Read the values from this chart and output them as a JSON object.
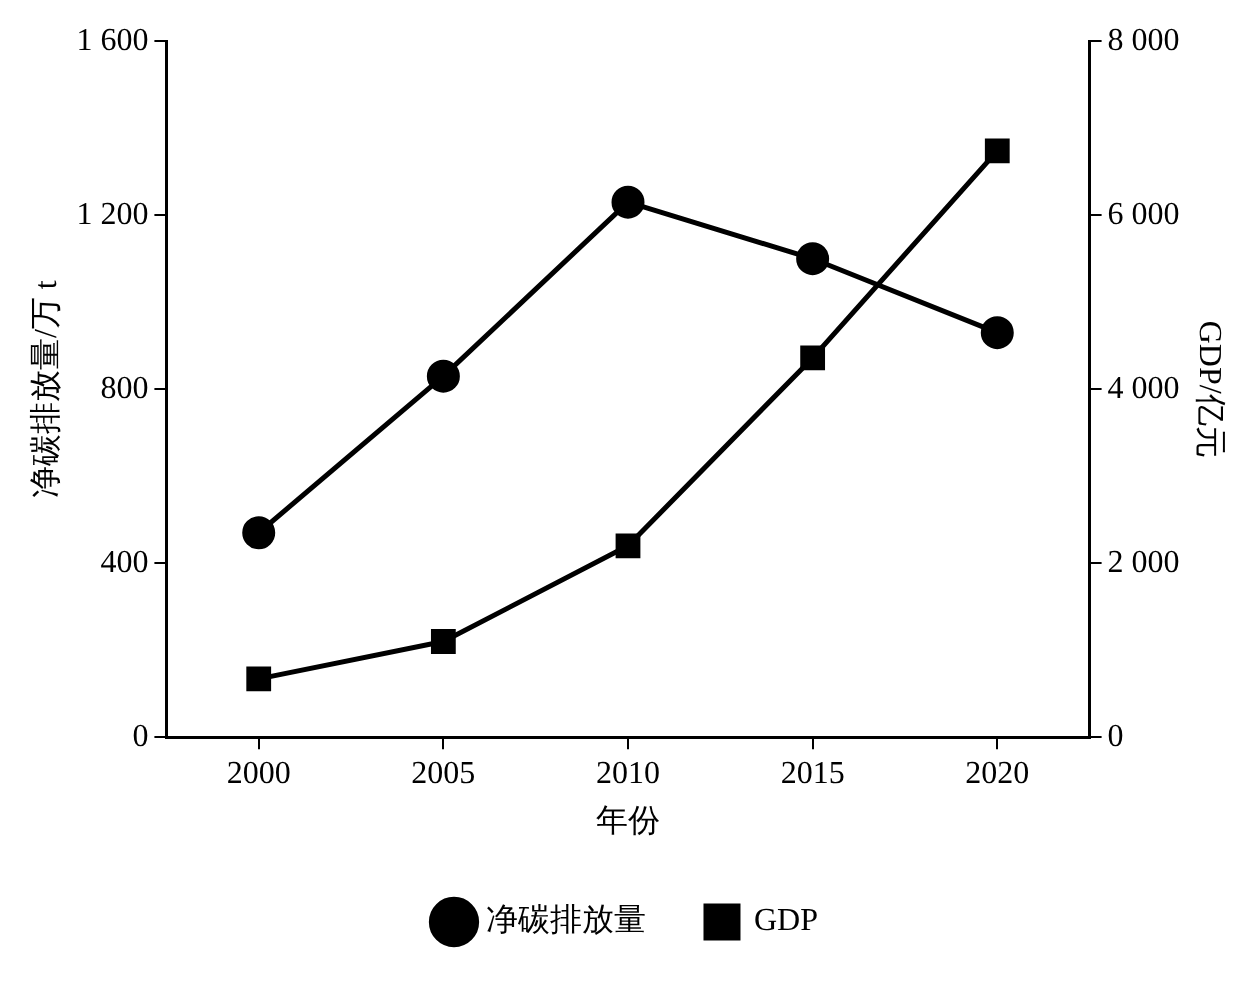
{
  "chart_data": {
    "type": "line",
    "xlabel": "年份",
    "ylabel": "净碳排放量/万 t",
    "y2label": "GDP/亿元",
    "x": [
      2000,
      2005,
      2010,
      2015,
      2020
    ],
    "xlim": [
      1997.5,
      2022.5
    ],
    "xticks": [
      2000,
      2005,
      2010,
      2015,
      2020
    ],
    "ylim": [
      0,
      1600
    ],
    "yticks": [
      0,
      400,
      800,
      {
        "value": 1200,
        "label": "1 200"
      },
      {
        "value": 1600,
        "label": "1 600"
      }
    ],
    "y2lim": [
      0,
      8000
    ],
    "y2ticks": [
      0,
      {
        "value": 2000,
        "label": "2 000"
      },
      {
        "value": 4000,
        "label": "4 000"
      },
      {
        "value": 6000,
        "label": "6 000"
      },
      {
        "value": 8000,
        "label": "8 000"
      }
    ],
    "series": [
      {
        "name": "净碳排放量",
        "color": "#000000",
        "marker": "circle",
        "values": [
          470,
          830,
          1230,
          1100,
          930
        ]
      },
      {
        "name": "GDP",
        "color": "#000000",
        "marker": "square",
        "axis": "y2",
        "values": [
          670,
          1100,
          2200,
          4360,
          6740
        ]
      }
    ],
    "legend": "bottom",
    "grid": false,
    "line_style": "solid"
  }
}
